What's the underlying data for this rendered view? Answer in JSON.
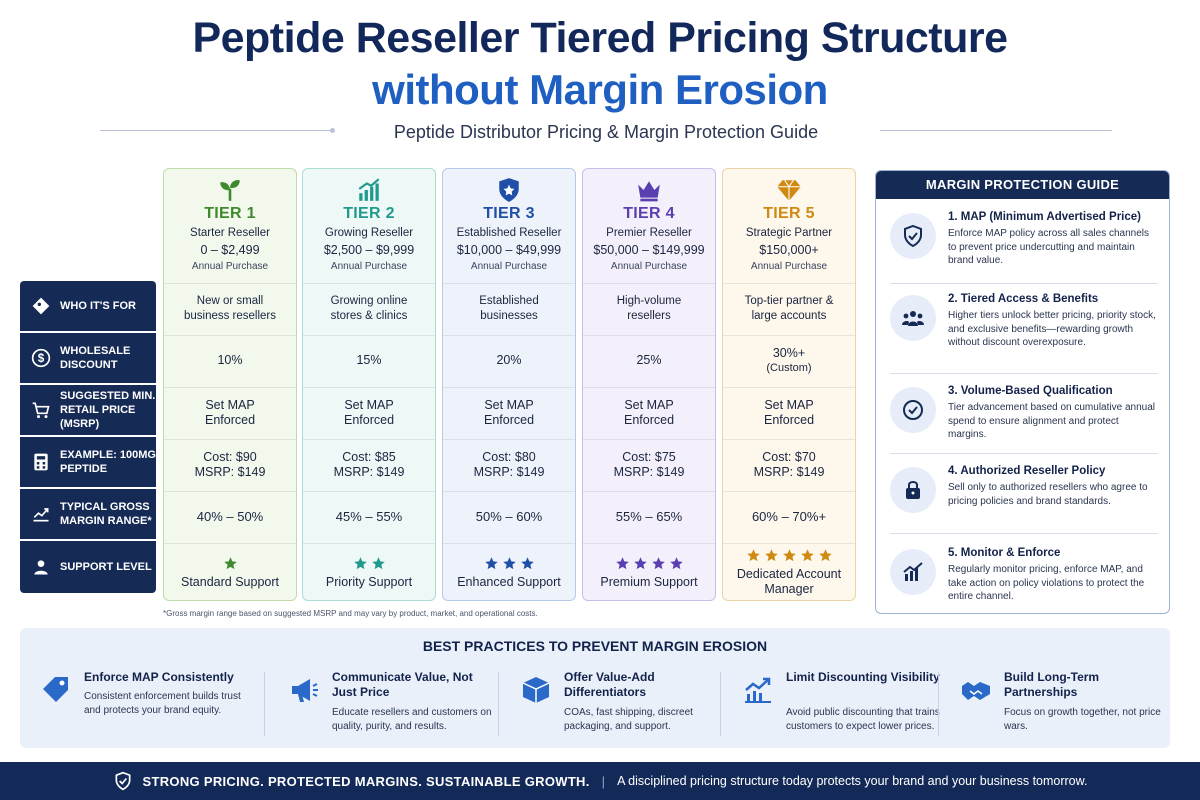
{
  "header": {
    "title_line1": "Peptide Reseller Tiered Pricing Structure",
    "title_line2": "without Margin Erosion",
    "subtitle": "Peptide Distributor Pricing & Margin Protection Guide"
  },
  "row_labels": [
    {
      "label": "WHO IT'S FOR",
      "icon": "tag-icon"
    },
    {
      "label": "WHOLESALE DISCOUNT",
      "icon": "dollar-circle-icon"
    },
    {
      "label": "SUGGESTED MIN. RETAIL PRICE (MSRP)",
      "icon": "cart-icon"
    },
    {
      "label": "EXAMPLE: 100mg PEPTIDE",
      "icon": "calculator-icon"
    },
    {
      "label": "TYPICAL GROSS MARGIN RANGE*",
      "icon": "chart-icon"
    },
    {
      "label": "SUPPORT LEVEL",
      "icon": "people-icon"
    }
  ],
  "tiers": [
    {
      "name": "TIER 1",
      "subtitle": "Starter Reseller",
      "range": "0 – $2,499",
      "range_note": "Annual Purchase",
      "icon": "sprout-icon",
      "who": "New or small business resellers",
      "discount": "10%",
      "msrp": "Set MAP Enforced",
      "cost": "Cost: $90",
      "example_msrp": "MSRP: $149",
      "margin": "40% – 50%",
      "stars": 1,
      "support": "Standard Support",
      "color": "#3f8a2e",
      "bg": "#f2f8ec",
      "border": "#bfdcae"
    },
    {
      "name": "TIER 2",
      "subtitle": "Growing Reseller",
      "range": "$2,500 – $9,999",
      "range_note": "Annual Purchase",
      "icon": "growth-chart-icon",
      "who": "Growing online stores & clinics",
      "discount": "15%",
      "msrp": "Set MAP Enforced",
      "cost": "Cost: $85",
      "example_msrp": "MSRP: $149",
      "margin": "45% – 55%",
      "stars": 2,
      "support": "Priority Support",
      "color": "#1f9a8c",
      "bg": "#eef8f7",
      "border": "#a9dcd5"
    },
    {
      "name": "TIER 3",
      "subtitle": "Established Reseller",
      "range": "$10,000 – $49,999",
      "range_note": "Annual Purchase",
      "icon": "shield-badge-icon",
      "who": "Established businesses",
      "discount": "20%",
      "msrp": "Set MAP Enforced",
      "cost": "Cost: $80",
      "example_msrp": "MSRP: $149",
      "margin": "50% – 60%",
      "stars": 3,
      "support": "Enhanced Support",
      "color": "#1f4fa6",
      "bg": "#eef3fb",
      "border": "#b5c9ea"
    },
    {
      "name": "TIER 4",
      "subtitle": "Premier Reseller",
      "range": "$50,000 – $149,999",
      "range_note": "Annual Purchase",
      "icon": "crown-icon",
      "who": "High-volume resellers",
      "discount": "25%",
      "msrp": "Set MAP Enforced",
      "cost": "Cost: $75",
      "example_msrp": "MSRP: $149",
      "margin": "55% – 65%",
      "stars": 4,
      "support": "Premium Support",
      "color": "#5a3fb0",
      "bg": "#f3f0fb",
      "border": "#c9bde9"
    },
    {
      "name": "TIER 5",
      "subtitle": "Strategic Partner",
      "range": "$150,000+",
      "range_note": "Annual Purchase",
      "icon": "diamond-icon",
      "who": "Top-tier partner & large accounts",
      "discount": "30%+",
      "discount_note": "(Custom)",
      "msrp": "Set MAP Enforced",
      "cost": "Cost: $70",
      "example_msrp": "MSRP: $149",
      "margin": "60% – 70%+",
      "stars": 5,
      "support": "Dedicated Account Manager",
      "color": "#d08a12",
      "bg": "#fdf7ec",
      "border": "#ecd3a4"
    }
  ],
  "footnote": "*Gross margin range based on suggested MSRP and may vary by product, market, and operational costs.",
  "guide": {
    "title": "MARGIN PROTECTION GUIDE",
    "items": [
      {
        "title": "1. MAP (Minimum Advertised Price)",
        "desc": "Enforce MAP policy across all sales channels to prevent price undercutting and maintain brand value.",
        "icon": "shield-check-icon"
      },
      {
        "title": "2. Tiered Access & Benefits",
        "desc": "Higher tiers unlock better pricing, priority stock, and exclusive benefits—rewarding growth without discount overexposure.",
        "icon": "group-icon"
      },
      {
        "title": "3. Volume-Based Qualification",
        "desc": "Tier advancement based on cumulative annual spend to ensure alignment and protect margins.",
        "icon": "check-circle-icon"
      },
      {
        "title": "4. Authorized Reseller Policy",
        "desc": "Sell only to authorized resellers who agree to pricing policies and brand standards.",
        "icon": "lock-icon"
      },
      {
        "title": "5. Monitor & Enforce",
        "desc": "Regularly monitor pricing, enforce MAP, and take action on policy violations to protect the entire channel.",
        "icon": "bar-chart-icon"
      }
    ]
  },
  "best_practices": {
    "title": "BEST PRACTICES TO PREVENT MARGIN EROSION",
    "items": [
      {
        "title": "Enforce MAP Consistently",
        "desc": "Consistent enforcement builds trust and protects your brand equity.",
        "icon": "price-tag-icon"
      },
      {
        "title": "Communicate Value, Not Just Price",
        "desc": "Educate resellers and customers on quality, purity, and results.",
        "icon": "megaphone-icon"
      },
      {
        "title": "Offer Value-Add Differentiators",
        "desc": "COAs, fast shipping, discreet packaging, and support.",
        "icon": "box-icon"
      },
      {
        "title": "Limit Discounting Visibility",
        "desc": "Avoid public discounting that trains customers to expect lower prices.",
        "icon": "trend-icon"
      },
      {
        "title": "Build Long-Term Partnerships",
        "desc": "Focus on growth together, not price wars.",
        "icon": "handshake-icon"
      }
    ]
  },
  "footer": {
    "bold": "STRONG PRICING. PROTECTED MARGINS. SUSTAINABLE GROWTH.",
    "sep": "|",
    "text": "A disciplined pricing structure today protects your brand and your business tomorrow."
  }
}
